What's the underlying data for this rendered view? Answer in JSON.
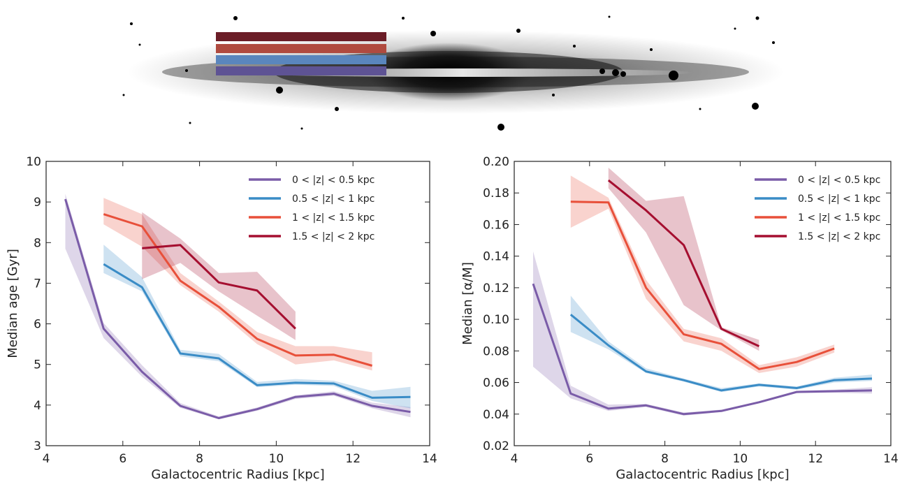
{
  "figure": {
    "galaxy_image": {
      "bands": [
        {
          "label": "1.5 < |z| < 2 kpc",
          "color": "#6b1d27"
        },
        {
          "label": "1 < |z| < 1.5 kpc",
          "color": "#b04a3f"
        },
        {
          "label": "0.5 < |z| < 1 kpc",
          "color": "#5a86bd"
        },
        {
          "label": "0 < |z| < 0.5 kpc",
          "color": "#5e5394"
        }
      ]
    }
  },
  "chart_data": [
    {
      "type": "line",
      "xlabel": "Galactocentric Radius [kpc]",
      "ylabel": "Median age [Gyr]",
      "xlim": [
        4,
        14
      ],
      "ylim": [
        3,
        10
      ],
      "xticks": [
        4,
        6,
        8,
        10,
        12,
        14
      ],
      "yticks": [
        3,
        4,
        5,
        6,
        7,
        8,
        9,
        10
      ],
      "legend_position": "top-right",
      "grid": false,
      "series": [
        {
          "name": "0 < |z| < 0.5 kpc",
          "color": "#7a5ca8",
          "x": [
            4.5,
            5.5,
            6.5,
            7.5,
            8.5,
            9.5,
            10.5,
            11.5,
            12.5,
            13.5
          ],
          "y": [
            9.07,
            5.88,
            4.82,
            3.98,
            3.68,
            3.9,
            4.2,
            4.28,
            3.98,
            3.83
          ],
          "lower": [
            7.85,
            5.65,
            4.7,
            3.93,
            3.65,
            3.86,
            4.15,
            4.23,
            3.92,
            3.7
          ],
          "upper": [
            9.2,
            6.02,
            4.98,
            4.05,
            3.72,
            3.94,
            4.24,
            4.34,
            4.06,
            3.95
          ]
        },
        {
          "name": "0.5 < |z| < 1 kpc",
          "color": "#3a8cc6",
          "x": [
            5.5,
            6.5,
            7.5,
            8.5,
            9.5,
            10.5,
            11.5,
            12.5,
            13.5
          ],
          "y": [
            7.47,
            6.9,
            5.27,
            5.15,
            4.49,
            4.55,
            4.53,
            4.18,
            4.2
          ],
          "lower": [
            7.25,
            6.8,
            5.2,
            5.08,
            4.44,
            4.5,
            4.47,
            4.1,
            3.92
          ],
          "upper": [
            7.95,
            7.15,
            5.36,
            5.26,
            4.57,
            4.64,
            4.6,
            4.35,
            4.45
          ]
        },
        {
          "name": "1 < |z| < 1.5 kpc",
          "color": "#e8503a",
          "x": [
            5.5,
            6.5,
            7.5,
            8.5,
            9.5,
            10.5,
            11.5,
            12.5
          ],
          "y": [
            8.7,
            8.4,
            7.06,
            6.42,
            5.63,
            5.22,
            5.24,
            4.97
          ],
          "lower": [
            8.45,
            7.9,
            6.95,
            6.3,
            5.5,
            5.0,
            5.1,
            4.85
          ],
          "upper": [
            9.1,
            8.7,
            7.25,
            6.55,
            5.8,
            5.45,
            5.45,
            5.3
          ]
        },
        {
          "name": "1.5 < |z| < 2 kpc",
          "color": "#a50f30",
          "x": [
            6.5,
            7.5,
            8.5,
            9.5,
            10.5
          ],
          "y": [
            7.86,
            7.94,
            7.02,
            6.82,
            5.88
          ],
          "lower": [
            7.1,
            7.5,
            6.8,
            6.2,
            5.6
          ],
          "upper": [
            8.75,
            8.1,
            7.25,
            7.28,
            6.3
          ]
        }
      ]
    },
    {
      "type": "line",
      "xlabel": "Galactocentric Radius [kpc]",
      "ylabel": "Median [α/M]",
      "xlim": [
        4,
        14
      ],
      "ylim": [
        0.02,
        0.2
      ],
      "xticks": [
        4,
        6,
        8,
        10,
        12,
        14
      ],
      "yticks": [
        0.02,
        0.04,
        0.06,
        0.08,
        0.1,
        0.12,
        0.14,
        0.16,
        0.18,
        0.2
      ],
      "ytick_labels": [
        "0.02",
        "0.04",
        "0.06",
        "0.08",
        "0.10",
        "0.12",
        "0.14",
        "0.16",
        "0.18",
        "0.20"
      ],
      "legend_position": "top-right",
      "grid": false,
      "series": [
        {
          "name": "0 < |z| < 0.5 kpc",
          "color": "#7a5ca8",
          "x": [
            4.5,
            5.5,
            6.5,
            7.5,
            8.5,
            9.5,
            10.5,
            11.5,
            12.5,
            13.5
          ],
          "y": [
            0.1225,
            0.053,
            0.0435,
            0.0455,
            0.04,
            0.042,
            0.0475,
            0.054,
            0.0545,
            0.055
          ],
          "lower": [
            0.07,
            0.05,
            0.042,
            0.0445,
            0.039,
            0.0413,
            0.0468,
            0.0533,
            0.0535,
            0.053
          ],
          "upper": [
            0.143,
            0.058,
            0.046,
            0.0465,
            0.041,
            0.0428,
            0.0482,
            0.0548,
            0.0555,
            0.057
          ]
        },
        {
          "name": "0.5 < |z| < 1 kpc",
          "color": "#3a8cc6",
          "x": [
            5.5,
            6.5,
            7.5,
            8.5,
            9.5,
            10.5,
            11.5,
            12.5,
            13.5
          ],
          "y": [
            0.103,
            0.0835,
            0.067,
            0.0615,
            0.055,
            0.0585,
            0.0565,
            0.0615,
            0.0625
          ],
          "lower": [
            0.092,
            0.081,
            0.066,
            0.0605,
            0.054,
            0.0575,
            0.0555,
            0.06,
            0.061
          ],
          "upper": [
            0.115,
            0.086,
            0.069,
            0.0625,
            0.0565,
            0.0595,
            0.0575,
            0.063,
            0.065
          ]
        },
        {
          "name": "1 < |z| < 1.5 kpc",
          "color": "#e8503a",
          "x": [
            5.5,
            6.5,
            7.5,
            8.5,
            9.5,
            10.5,
            11.5,
            12.5
          ],
          "y": [
            0.1745,
            0.174,
            0.12,
            0.0905,
            0.0845,
            0.0685,
            0.073,
            0.0815
          ],
          "lower": [
            0.158,
            0.17,
            0.113,
            0.086,
            0.08,
            0.066,
            0.07,
            0.079
          ],
          "upper": [
            0.191,
            0.177,
            0.125,
            0.094,
            0.088,
            0.071,
            0.076,
            0.084
          ]
        },
        {
          "name": "1.5 < |z| < 2 kpc",
          "color": "#a50f30",
          "x": [
            6.5,
            7.5,
            8.5,
            9.5,
            10.5
          ],
          "y": [
            0.188,
            0.169,
            0.147,
            0.094,
            0.083
          ],
          "lower": [
            0.183,
            0.155,
            0.109,
            0.093,
            0.08
          ],
          "upper": [
            0.196,
            0.175,
            0.178,
            0.095,
            0.087
          ]
        }
      ]
    }
  ]
}
